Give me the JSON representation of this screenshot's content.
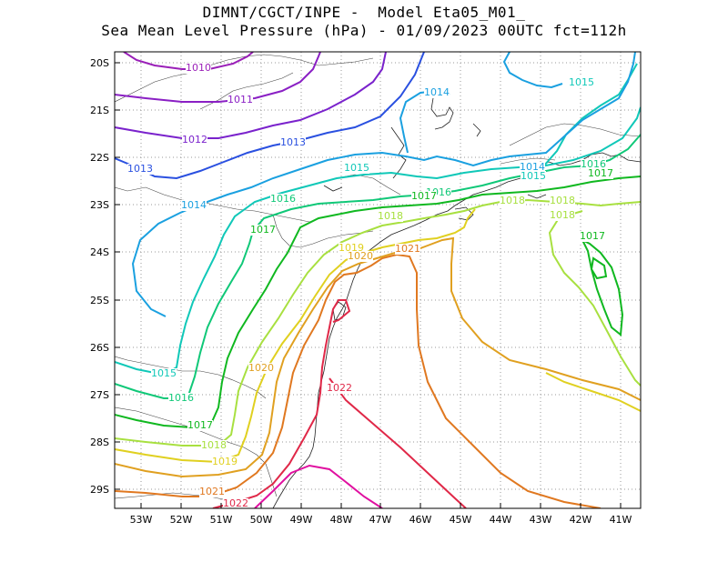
{
  "title_line1": "DIMNT/CGCT/INPE -  Model Eta05_M01_",
  "title_line2": "Sea Mean Level Pressure (hPa) - 01/09/2023 00UTC fct=112h",
  "lat_labels": [
    "20S",
    "21S",
    "22S",
    "23S",
    "24S",
    "25S",
    "26S",
    "27S",
    "28S",
    "29S"
  ],
  "lon_labels": [
    "53W",
    "52W",
    "51W",
    "50W",
    "49W",
    "48W",
    "47W",
    "46W",
    "45W",
    "44W",
    "43W",
    "42W",
    "41W"
  ],
  "contour_colors": {
    "1010": "#9a1fb8",
    "1011": "#8a1fc4",
    "1012": "#7a22cc",
    "1013": "#2a50e0",
    "1014": "#1aa0e0",
    "1015": "#10c8b8",
    "1016": "#10c878",
    "1017": "#10b820",
    "1018": "#a8e040",
    "1019": "#e0d020",
    "1020": "#e0a020",
    "1021": "#e07820",
    "1022": "#e02848",
    "1023": "#e010a0"
  },
  "contour_labels": [
    {
      "text": "1010",
      "level": "1010"
    },
    {
      "text": "1011",
      "level": "1011"
    },
    {
      "text": "1012",
      "level": "1012"
    },
    {
      "text": "1013",
      "level": "1013"
    },
    {
      "text": "1013",
      "level": "1013"
    },
    {
      "text": "1014",
      "level": "1014"
    },
    {
      "text": "1014",
      "level": "1014"
    },
    {
      "text": "1014",
      "level": "1014"
    },
    {
      "text": "1015",
      "level": "1015"
    },
    {
      "text": "1015",
      "level": "1015"
    },
    {
      "text": "1015",
      "level": "1015"
    },
    {
      "text": "1015",
      "level": "1015"
    },
    {
      "text": "1016",
      "level": "1016"
    },
    {
      "text": "1016",
      "level": "1016"
    },
    {
      "text": "1016",
      "level": "1016"
    },
    {
      "text": "1016",
      "level": "1016"
    },
    {
      "text": "1017",
      "level": "1017"
    },
    {
      "text": "1017",
      "level": "1017"
    },
    {
      "text": "1017",
      "level": "1017"
    },
    {
      "text": "1017",
      "level": "1017"
    },
    {
      "text": "1017",
      "level": "1017"
    },
    {
      "text": "1018",
      "level": "1018"
    },
    {
      "text": "1018",
      "level": "1018"
    },
    {
      "text": "1018",
      "level": "1018"
    },
    {
      "text": "1018",
      "level": "1018"
    },
    {
      "text": "1018",
      "level": "1018"
    },
    {
      "text": "1019",
      "level": "1019"
    },
    {
      "text": "1019",
      "level": "1019"
    },
    {
      "text": "1020",
      "level": "1020"
    },
    {
      "text": "1020",
      "level": "1020"
    },
    {
      "text": "1021",
      "level": "1021"
    },
    {
      "text": "1021",
      "level": "1021"
    },
    {
      "text": "1022",
      "level": "1022"
    },
    {
      "text": "1022",
      "level": "1022"
    }
  ]
}
